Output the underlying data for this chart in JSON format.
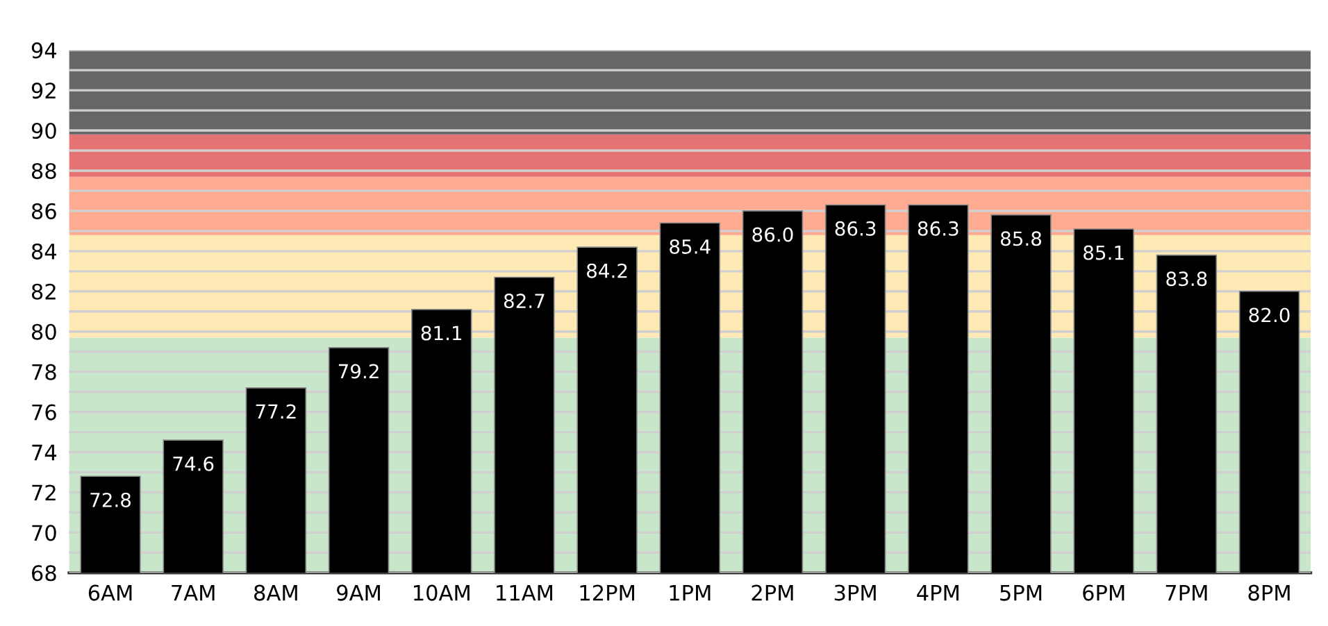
{
  "chart_data": {
    "type": "bar",
    "categories": [
      "6AM",
      "7AM",
      "8AM",
      "9AM",
      "10AM",
      "11AM",
      "12PM",
      "1PM",
      "2PM",
      "3PM",
      "4PM",
      "5PM",
      "6PM",
      "7PM",
      "8PM"
    ],
    "values": [
      72.8,
      74.6,
      77.2,
      79.2,
      81.1,
      82.7,
      84.2,
      85.4,
      86.0,
      86.3,
      86.3,
      85.8,
      85.1,
      83.8,
      82.0
    ],
    "color": "#000000",
    "value_labels": [
      "72.8",
      "74.6",
      "77.2",
      "79.2",
      "81.1",
      "82.7",
      "84.2",
      "85.4",
      "86.0",
      "86.3",
      "86.3",
      "85.8",
      "85.1",
      "83.8",
      "82.0"
    ],
    "grid": "y",
    "ylim": [
      68,
      94
    ],
    "yticks": [
      68,
      {
        "value": 69,
        "label": null
      },
      70,
      {
        "value": 71,
        "label": null
      },
      72,
      {
        "value": 73,
        "label": null
      },
      74,
      {
        "value": 75,
        "label": null
      },
      76,
      {
        "value": 77,
        "label": null
      },
      78,
      {
        "value": 79,
        "label": null
      },
      80,
      {
        "value": 81,
        "label": null
      },
      82,
      {
        "value": 83,
        "label": null
      },
      84,
      {
        "value": 85,
        "label": null
      },
      86,
      {
        "value": 87,
        "label": null
      },
      88,
      {
        "value": 89,
        "label": null
      },
      90,
      {
        "value": 91,
        "label": null
      },
      92,
      {
        "value": 93,
        "label": null
      },
      94
    ],
    "bands": [
      {
        "axis": "y",
        "from": 68,
        "to": 79.7,
        "color": "#c8e6c9"
      },
      {
        "axis": "y",
        "from": 79.7,
        "to": 84.8,
        "color": "#ffe9b5"
      },
      {
        "axis": "y",
        "from": 84.8,
        "to": 87.7,
        "color": "#ffab91"
      },
      {
        "axis": "y",
        "from": 87.7,
        "to": 89.8,
        "color": "#e57373"
      },
      {
        "axis": "y",
        "from": 89.8,
        "to": 94,
        "color": "#666666"
      }
    ]
  }
}
